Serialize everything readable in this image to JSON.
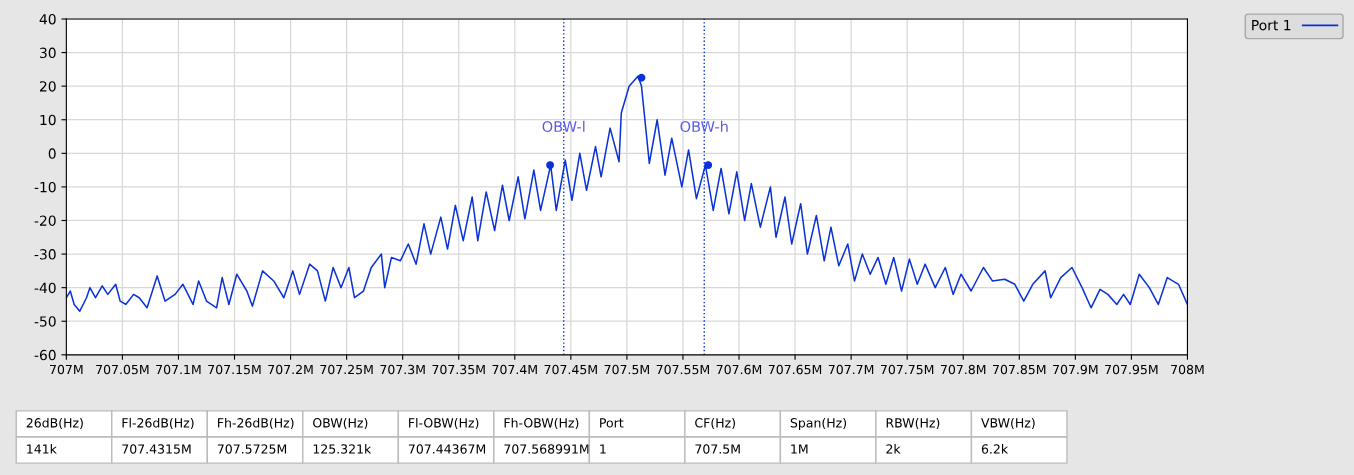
{
  "chart_data": {
    "type": "line",
    "xlim": [
      707.0,
      708.0
    ],
    "ylim": [
      -60,
      40
    ],
    "xticks": [
      {
        "value": 707.0,
        "label": "707M"
      },
      {
        "value": 707.05,
        "label": "707.05M"
      },
      {
        "value": 707.1,
        "label": "707.1M"
      },
      {
        "value": 707.15,
        "label": "707.15M"
      },
      {
        "value": 707.2,
        "label": "707.2M"
      },
      {
        "value": 707.25,
        "label": "707.25M"
      },
      {
        "value": 707.3,
        "label": "707.3M"
      },
      {
        "value": 707.35,
        "label": "707.35M"
      },
      {
        "value": 707.4,
        "label": "707.4M"
      },
      {
        "value": 707.45,
        "label": "707.45M"
      },
      {
        "value": 707.5,
        "label": "707.5M"
      },
      {
        "value": 707.55,
        "label": "707.55M"
      },
      {
        "value": 707.6,
        "label": "707.6M"
      },
      {
        "value": 707.65,
        "label": "707.65M"
      },
      {
        "value": 707.7,
        "label": "707.7M"
      },
      {
        "value": 707.75,
        "label": "707.75M"
      },
      {
        "value": 707.8,
        "label": "707.8M"
      },
      {
        "value": 707.85,
        "label": "707.85M"
      },
      {
        "value": 707.9,
        "label": "707.9M"
      },
      {
        "value": 707.95,
        "label": "707.95M"
      },
      {
        "value": 708.0,
        "label": "708M"
      }
    ],
    "yticks": [
      -60,
      -50,
      -40,
      -30,
      -20,
      -10,
      0,
      10,
      20,
      30,
      40
    ],
    "grid": true,
    "legend": "top right",
    "marker": "none",
    "line_style": "solid",
    "series": [
      {
        "name": "Port 1",
        "color": "#0a32d8",
        "x": [
          707.0,
          707.0035,
          707.007,
          707.012,
          707.018,
          707.021,
          707.026,
          707.032,
          707.037,
          707.044,
          707.048,
          707.053,
          707.06,
          707.065,
          707.072,
          707.081,
          707.088,
          707.097,
          707.104,
          707.113,
          707.118,
          707.125,
          707.134,
          707.139,
          707.145,
          707.152,
          707.161,
          707.166,
          707.175,
          707.185,
          707.194,
          707.202,
          707.208,
          707.217,
          707.224,
          707.231,
          707.238,
          707.245,
          707.252,
          707.257,
          707.265,
          707.272,
          707.281,
          707.284,
          707.29,
          707.298,
          707.305,
          707.312,
          707.319,
          707.325,
          707.334,
          707.34,
          707.347,
          707.354,
          707.362,
          707.367,
          707.3745,
          707.382,
          707.389,
          707.395,
          707.403,
          707.409,
          707.417,
          707.423,
          707.432,
          707.437,
          707.445,
          707.451,
          707.458,
          707.464,
          707.472,
          707.477,
          707.485,
          707.493,
          707.495,
          707.502,
          707.51,
          707.513,
          707.52,
          707.527,
          707.534,
          707.54,
          707.549,
          707.555,
          707.562,
          707.57,
          707.577,
          707.584,
          707.591,
          707.598,
          707.605,
          707.611,
          707.619,
          707.628,
          707.633,
          707.641,
          707.647,
          707.655,
          707.661,
          707.669,
          707.676,
          707.682,
          707.689,
          707.697,
          707.703,
          707.71,
          707.717,
          707.724,
          707.731,
          707.738,
          707.745,
          707.752,
          707.759,
          707.766,
          707.775,
          707.784,
          707.791,
          707.798,
          707.807,
          707.818,
          707.826,
          707.837,
          707.846,
          707.854,
          707.862,
          707.873,
          707.878,
          707.887,
          707.897,
          707.906,
          707.914,
          707.922,
          707.929,
          707.937,
          707.943,
          707.949,
          707.957,
          707.966,
          707.974,
          707.982,
          707.992,
          708.0
        ],
        "values": [
          -43,
          -41,
          -45,
          -47,
          -43,
          -40,
          -43,
          -39.5,
          -42,
          -39,
          -44,
          -45,
          -42,
          -43,
          -46,
          -36.5,
          -44,
          -42,
          -39,
          -45,
          -38,
          -44,
          -46,
          -37,
          -45,
          -36,
          -41,
          -45.5,
          -35,
          -38,
          -43,
          -35,
          -42,
          -33,
          -35,
          -44,
          -34,
          -40,
          -34,
          -43,
          -41,
          -34,
          -30,
          -40,
          -31,
          -32,
          -27,
          -33,
          -21,
          -30,
          -19,
          -28.5,
          -15.5,
          -26,
          -13,
          -26,
          -11.5,
          -23,
          -9.5,
          -20,
          -7,
          -19.5,
          -5,
          -17,
          -3.5,
          -17,
          -2,
          -14,
          0,
          -11,
          2,
          -7,
          7.5,
          -2.5,
          12,
          20,
          23,
          20,
          -3,
          10,
          -6.5,
          4.5,
          -10,
          1,
          -13.5,
          -3.5,
          -17,
          -4.5,
          -18,
          -5.5,
          -20,
          -9,
          -22,
          -10,
          -25,
          -13,
          -27,
          -15,
          -30,
          -18.5,
          -32,
          -22,
          -33.5,
          -27,
          -38,
          -30,
          -36,
          -31,
          -39,
          -31,
          -41,
          -31.5,
          -39,
          -33,
          -40,
          -34,
          -42,
          -36,
          -41,
          -34,
          -38,
          -37.5,
          -39,
          -44,
          -39,
          -35,
          -43,
          -37,
          -34,
          -40,
          -46,
          -40.5,
          -42,
          -45,
          -42,
          -45,
          -36,
          -40,
          -45,
          -37,
          -39,
          -45
        ]
      },
      {
        "type": "scatter",
        "color": "#0a32d8",
        "marker": "circle",
        "x": [
          707.4315,
          707.513,
          707.5725
        ],
        "values": [
          -3.5,
          22.5,
          -3.5
        ]
      }
    ],
    "ref_lines": [
      {
        "axis": "x",
        "value": 707.44367,
        "label": "OBW-l",
        "color": "#0a32d8",
        "line_style": "dotted"
      },
      {
        "axis": "x",
        "value": 707.568991,
        "label": "OBW-h",
        "color": "#0a32d8",
        "line_style": "dotted"
      }
    ],
    "annotations": [
      "26dB(Hz)",
      "Fl-26dB(Hz)",
      "Fh-26dB(Hz)",
      "OBW(Hz)",
      "Fl-OBW(Hz)",
      "Fh-OBW(Hz)",
      "Port",
      "CF(Hz)",
      "Span(Hz)",
      "RBW(Hz)",
      "VBW(Hz)",
      "141k",
      "707.4315M",
      "707.5725M",
      "125.321k",
      "707.44367M",
      "707.568991M",
      "1",
      "707.5M",
      "1M",
      "2k",
      "6.2k"
    ]
  }
}
